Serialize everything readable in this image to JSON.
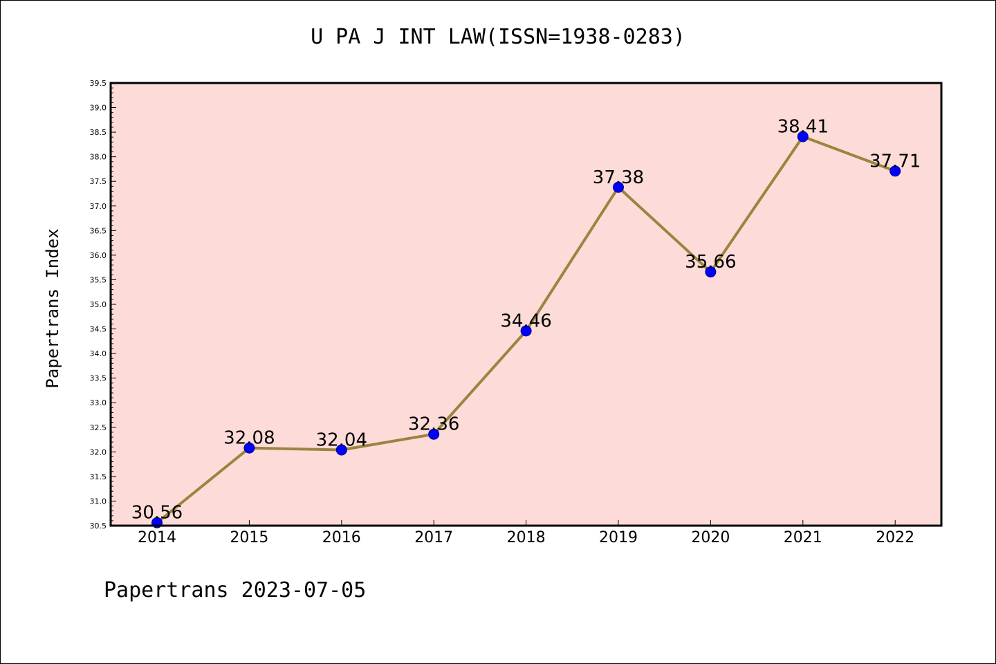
{
  "chart_data": {
    "type": "line",
    "title": "U PA J INT LAW(ISSN=1938-0283)",
    "xlabel": "",
    "ylabel": "Papertrans Index",
    "footer": "Papertrans 2023-07-05",
    "categories": [
      "2014",
      "2015",
      "2016",
      "2017",
      "2018",
      "2019",
      "2020",
      "2021",
      "2022"
    ],
    "values": [
      30.56,
      32.08,
      32.04,
      32.36,
      34.46,
      37.38,
      35.66,
      38.41,
      37.71
    ],
    "data_labels": [
      "30.56",
      "32.08",
      "32.04",
      "32.36",
      "34.46",
      "37.38",
      "35.66",
      "38.41",
      "37.71"
    ],
    "ylim": [
      30.5,
      39.5
    ],
    "yticks": [
      "30.5",
      "31.0",
      "31.5",
      "32.0",
      "32.5",
      "33.0",
      "33.5",
      "34.0",
      "34.5",
      "35.0",
      "35.5",
      "36.0",
      "36.5",
      "37.0",
      "37.5",
      "38.0",
      "38.5",
      "39.0",
      "39.5"
    ],
    "grid": false,
    "colors": {
      "plot_background": "#fddbd8",
      "line": "#9a8540",
      "marker": "#0000ff",
      "marker_edge": "#000080"
    }
  }
}
